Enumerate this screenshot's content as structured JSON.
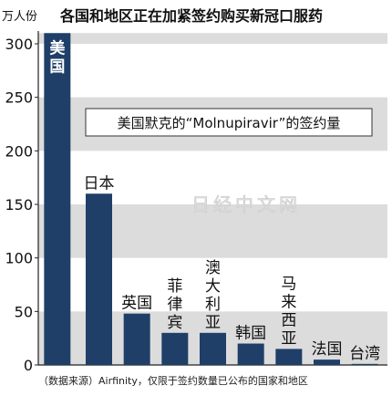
{
  "chart_data": {
    "type": "bar",
    "title": "各国和地区正在加紧签约购买新冠口服药",
    "ylabel": "万人份",
    "annotation": "美国默克的“Molnupiravir”的签约量",
    "watermark": "日经中文网",
    "source": "（数据来源）Airfinity，仅限于签约数量已公布的国家和地区",
    "ylim": [
      0,
      300
    ],
    "yticks": [
      0,
      50,
      100,
      150,
      200,
      250,
      300
    ],
    "grid": "alternating-bands",
    "categories": [
      "美国",
      "日本",
      "英国",
      "菲律宾",
      "澳大利亚",
      "韩国",
      "马来西亚",
      "法国",
      "台湾"
    ],
    "values": [
      310,
      160,
      48,
      30,
      30,
      20,
      15,
      5,
      1
    ],
    "bar_color": "#1f3f68",
    "band_color": "#dcdcdc"
  }
}
